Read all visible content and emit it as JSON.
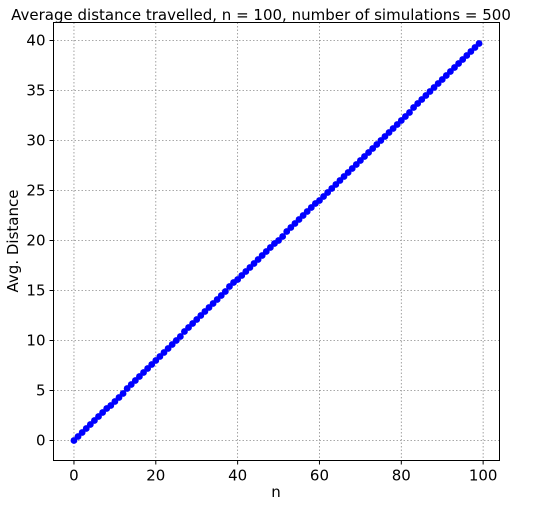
{
  "chart_data": {
    "type": "scatter",
    "title": "Average distance travelled, n = 100, number of simulations = 500",
    "xlabel": "n",
    "ylabel": "Avg. Distance",
    "xlim": [
      -5,
      104
    ],
    "ylim": [
      -2,
      41.8
    ],
    "xticks": [
      0,
      20,
      40,
      60,
      80,
      100
    ],
    "xtick_labels": [
      "0",
      "20",
      "40",
      "60",
      "80",
      "100"
    ],
    "yticks": [
      0,
      5,
      10,
      15,
      20,
      25,
      30,
      35,
      40
    ],
    "ytick_labels": [
      "0",
      "5",
      "10",
      "15",
      "20",
      "25",
      "30",
      "35",
      "40"
    ],
    "grid": true,
    "marker_color": "#0000ff",
    "line_color": "#0000ff",
    "x": [
      0,
      1,
      2,
      3,
      4,
      5,
      6,
      7,
      8,
      9,
      10,
      11,
      12,
      13,
      14,
      15,
      16,
      17,
      18,
      19,
      20,
      21,
      22,
      23,
      24,
      25,
      26,
      27,
      28,
      29,
      30,
      31,
      32,
      33,
      34,
      35,
      36,
      37,
      38,
      39,
      40,
      41,
      42,
      43,
      44,
      45,
      46,
      47,
      48,
      49,
      50,
      51,
      52,
      53,
      54,
      55,
      56,
      57,
      58,
      59,
      60,
      61,
      62,
      63,
      64,
      65,
      66,
      67,
      68,
      69,
      70,
      71,
      72,
      73,
      74,
      75,
      76,
      77,
      78,
      79,
      80,
      81,
      82,
      83,
      84,
      85,
      86,
      87,
      88,
      89,
      90,
      91,
      92,
      93,
      94,
      95,
      96,
      97,
      98,
      99
    ],
    "y": [
      0.0,
      0.4,
      0.8,
      1.2,
      1.6,
      2.0,
      2.4,
      2.8,
      3.2,
      3.5,
      3.9,
      4.3,
      4.7,
      5.2,
      5.6,
      6.0,
      6.4,
      6.8,
      7.2,
      7.6,
      8.0,
      8.4,
      8.8,
      9.2,
      9.6,
      10.0,
      10.4,
      10.9,
      11.3,
      11.7,
      12.1,
      12.5,
      12.9,
      13.3,
      13.7,
      14.1,
      14.5,
      14.9,
      15.4,
      15.8,
      16.1,
      16.5,
      16.9,
      17.3,
      17.7,
      18.1,
      18.5,
      18.9,
      19.3,
      19.7,
      20.0,
      20.4,
      20.9,
      21.3,
      21.7,
      22.1,
      22.5,
      22.9,
      23.3,
      23.7,
      24.0,
      24.4,
      24.8,
      25.2,
      25.6,
      26.0,
      26.4,
      26.8,
      27.2,
      27.6,
      28.0,
      28.4,
      28.8,
      29.2,
      29.6,
      30.0,
      30.4,
      30.8,
      31.2,
      31.6,
      32.0,
      32.4,
      32.8,
      33.3,
      33.7,
      34.1,
      34.5,
      34.9,
      35.3,
      35.7,
      36.1,
      36.5,
      36.9,
      37.3,
      37.7,
      38.1,
      38.5,
      38.9,
      39.3,
      39.7
    ]
  }
}
